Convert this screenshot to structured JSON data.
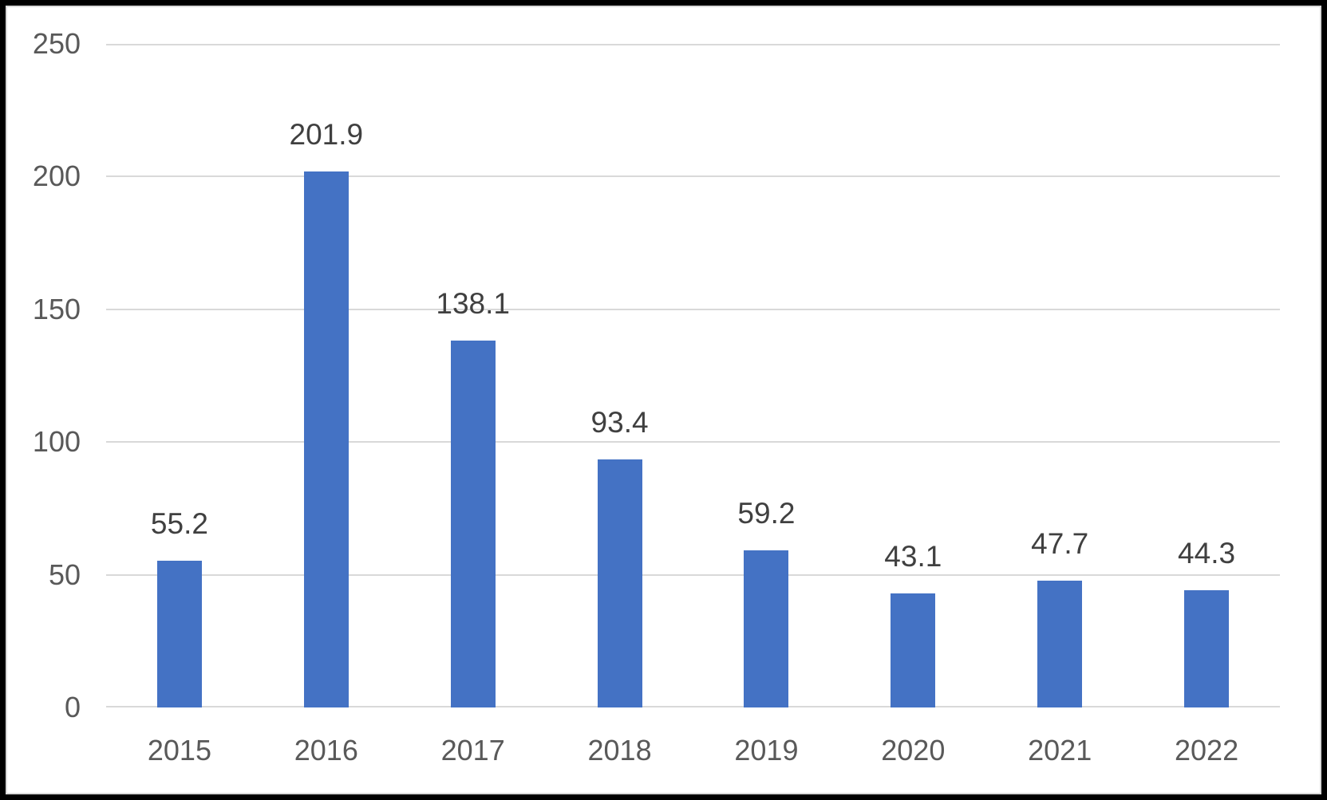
{
  "chart_data": {
    "type": "bar",
    "categories": [
      "2015",
      "2016",
      "2017",
      "2018",
      "2019",
      "2020",
      "2021",
      "2022"
    ],
    "values": [
      55.2,
      201.9,
      138.1,
      93.4,
      59.2,
      43.1,
      47.7,
      44.3
    ],
    "value_labels": [
      "55.2",
      "201.9",
      "138.1",
      "93.4",
      "59.2",
      "43.1",
      "47.7",
      "44.3"
    ],
    "title": "",
    "xlabel": "",
    "ylabel": "",
    "ylim": [
      0,
      250
    ],
    "yticks": [
      0,
      50,
      100,
      150,
      200,
      250
    ],
    "ytick_labels": [
      "0",
      "50",
      "100",
      "150",
      "200",
      "250"
    ],
    "grid": "horizontal",
    "legend": "none",
    "bar_color": "#4472C4"
  },
  "colors": {
    "bar_fill": "#4472C4",
    "gridline": "#D9D9D9",
    "axis_text": "#595959",
    "data_label_text": "#404040",
    "frame_border": "#000000",
    "chart_border": "#D9D9D9",
    "background": "#FFFFFF"
  }
}
